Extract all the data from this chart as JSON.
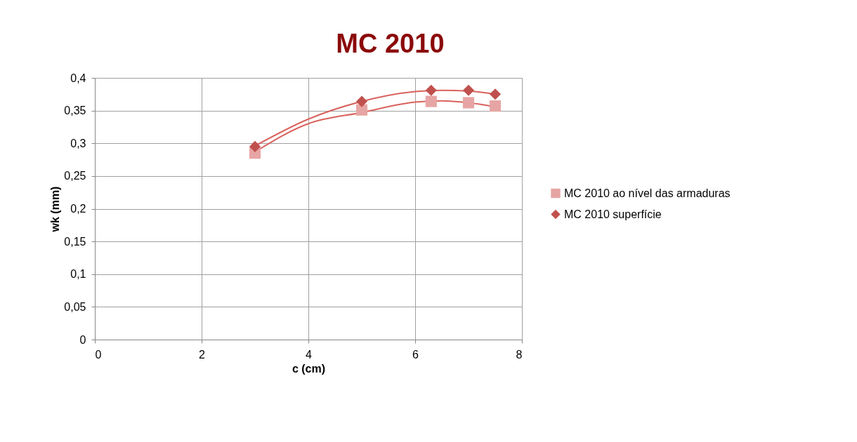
{
  "chart_data": {
    "type": "scatter",
    "title": "MC 2010",
    "xlabel": "c (cm)",
    "ylabel": "wk (mm)",
    "x": [
      3,
      5,
      6.3,
      7,
      7.5
    ],
    "series": [
      {
        "name": "MC 2010 ao nível das armaduras",
        "color": "#e6a5a4",
        "marker": "square",
        "values": [
          0.285,
          0.351,
          0.364,
          0.362,
          0.357
        ]
      },
      {
        "name": "MC 2010 superfície",
        "color": "#c0504d",
        "marker": "diamond",
        "values": [
          0.295,
          0.364,
          0.381,
          0.381,
          0.375
        ]
      },
      {
        "type": "line",
        "color": "#d9625e",
        "x": [
          3,
          4,
          5,
          6,
          6.5,
          7,
          7.5
        ],
        "values": [
          0.287,
          0.33,
          0.347,
          0.363,
          0.365,
          0.362,
          0.356
        ]
      },
      {
        "type": "line",
        "color": "#d9625e",
        "x": [
          3,
          4,
          5,
          6,
          6.5,
          7,
          7.5
        ],
        "values": [
          0.296,
          0.337,
          0.364,
          0.379,
          0.381,
          0.38,
          0.375
        ]
      }
    ],
    "xlim": [
      0,
      8
    ],
    "xticks": [
      0,
      2,
      4,
      6,
      8
    ],
    "ylim": [
      0,
      0.4
    ],
    "yticks": [
      0,
      {
        "value": 0.05,
        "label": "0,05"
      },
      {
        "value": 0.1,
        "label": "0,1"
      },
      {
        "value": 0.15,
        "label": "0,15"
      },
      {
        "value": 0.2,
        "label": "0,2"
      },
      {
        "value": 0.25,
        "label": "0,25"
      },
      {
        "value": 0.3,
        "label": "0,3"
      },
      {
        "value": 0.35,
        "label": "0,35"
      },
      {
        "value": 0.4,
        "label": "0,4"
      }
    ],
    "grid": true,
    "legend": "right"
  }
}
